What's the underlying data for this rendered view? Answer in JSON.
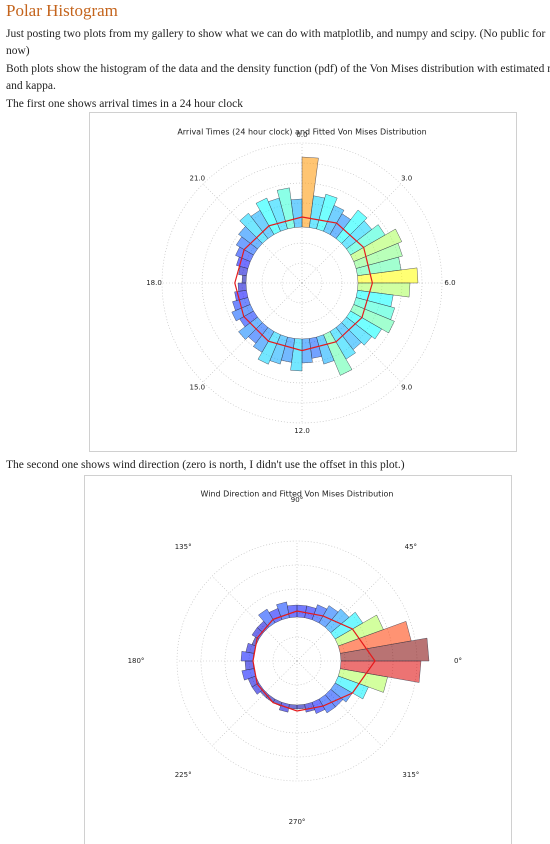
{
  "header": {
    "title": "Polar Histogram"
  },
  "paragraphs": [
    "Just posting two plots from my gallery to show what we can do with matplotlib, and numpy and scipy. (No public for now)",
    "Both plots show the histogram of the data and the density function (pdf) of the Von Mises distribution with estimated mu and kappa.",
    "The first one shows arrival times in a 24 hour clock",
    "The second one shows wind direction (zero is north, I didn't use the offset in this plot.)"
  ],
  "chart_data": [
    {
      "type": "polar-histogram",
      "title": "Arrival Times (24 hour clock) and Fitted Von Mises Distribution",
      "theta_zero": "top",
      "theta_direction": "clockwise",
      "colormap": "jet",
      "clim": [
        0,
        24
      ],
      "grid": true,
      "xlim": [
        0,
        24
      ],
      "xticks": [
        {
          "value": 0,
          "label": "0.0"
        },
        {
          "value": 3,
          "label": "3.0"
        },
        {
          "value": 6,
          "label": "6.0"
        },
        {
          "value": 9,
          "label": "9.0"
        },
        {
          "value": 12,
          "label": "12.0"
        },
        {
          "value": 15,
          "label": "15.0"
        },
        {
          "value": 18,
          "label": "18.0"
        },
        {
          "value": 21,
          "label": "21.0"
        }
      ],
      "ylim": [
        0,
        35
      ],
      "yticks": [
        5,
        10,
        15,
        20,
        25,
        30,
        35
      ],
      "bottom": 14,
      "bins": [
        0,
        0.5,
        1,
        1.5,
        2,
        2.5,
        3,
        3.5,
        4,
        4.5,
        5,
        5.5,
        6,
        6.5,
        7,
        7.5,
        8,
        8.5,
        9,
        9.5,
        10,
        10.5,
        11,
        11.5,
        12,
        12.5,
        13,
        13.5,
        14,
        14.5,
        15,
        15.5,
        16,
        16.5,
        17,
        17.5,
        18,
        18.5,
        19,
        19.5,
        20,
        20.5,
        21,
        21.5,
        22,
        22.5,
        23,
        23.5,
        24
      ],
      "values": [
        17.5,
        8,
        9,
        7,
        6,
        9,
        8,
        10,
        13,
        12,
        11,
        15,
        13,
        9,
        10,
        11,
        9,
        8,
        7,
        8,
        11,
        7,
        5,
        6,
        8,
        6,
        7,
        8,
        6,
        5,
        6,
        4,
        5,
        4,
        3,
        2,
        1,
        2,
        3,
        4,
        5,
        6,
        8,
        7,
        9,
        8,
        10,
        7
      ],
      "line": {
        "color": "#e41a1c",
        "x": [
          0,
          2,
          4,
          6,
          8,
          10,
          12,
          14,
          16,
          18,
          20,
          22
        ],
        "values": [
          16.5,
          17.3,
          17.8,
          17.6,
          17.3,
          17,
          16.9,
          16.8,
          16.8,
          16.8,
          16.7,
          16.5
        ]
      }
    },
    {
      "type": "polar-histogram",
      "title": "Wind Direction and Fitted Von Mises Distribution",
      "theta_zero": "right",
      "theta_direction": "counterclockwise",
      "colormap": "jet",
      "clim": [
        0,
        22
      ],
      "grid": true,
      "xlim": [
        0,
        360
      ],
      "xticks": [
        {
          "value": 0,
          "label": "0°"
        },
        {
          "value": 45,
          "label": "45°"
        },
        {
          "value": 90,
          "label": "90°"
        },
        {
          "value": 135,
          "label": "135°"
        },
        {
          "value": 180,
          "label": "180°"
        },
        {
          "value": 225,
          "label": "225°"
        },
        {
          "value": 270,
          "label": "270°"
        },
        {
          "value": 315,
          "label": "315°"
        }
      ],
      "ylim": [
        0,
        30
      ],
      "yticks": [
        6,
        12,
        18,
        24,
        30
      ],
      "bottom": 11,
      "bins": [
        0,
        10,
        20,
        30,
        40,
        50,
        60,
        70,
        80,
        90,
        100,
        110,
        120,
        130,
        140,
        150,
        160,
        170,
        180,
        190,
        200,
        210,
        220,
        230,
        240,
        250,
        260,
        270,
        280,
        290,
        300,
        310,
        320,
        330,
        340,
        350,
        360
      ],
      "values": [
        22,
        18,
        12,
        8,
        6,
        5,
        4,
        3,
        3,
        3,
        4,
        3,
        4,
        2,
        2,
        1,
        2,
        3,
        2,
        3,
        2,
        2,
        1,
        1,
        1,
        2,
        1,
        1,
        2,
        3,
        4,
        4,
        5,
        8,
        12,
        20
      ],
      "line": {
        "color": "#e41a1c",
        "x": [
          0,
          30,
          60,
          90,
          120,
          150,
          180,
          210,
          240,
          270,
          300,
          330
        ],
        "values": [
          19.5,
          16,
          13,
          12.5,
          12,
          11.5,
          11,
          11.5,
          12,
          12.5,
          13,
          16
        ]
      }
    }
  ]
}
